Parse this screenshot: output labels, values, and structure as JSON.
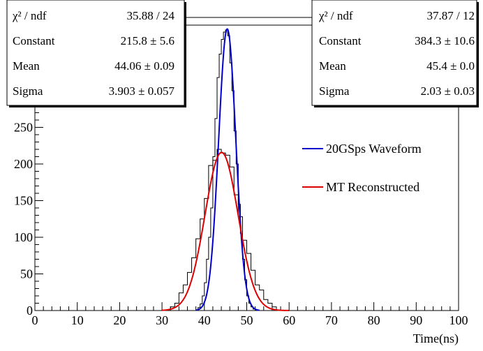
{
  "chart_data": {
    "type": "line",
    "title": "",
    "xlabel": "Time(ns)",
    "ylabel": "",
    "xlim": [
      0,
      100
    ],
    "ylim": [
      0,
      400
    ],
    "x_ticks": [
      0,
      10,
      20,
      30,
      40,
      50,
      60,
      70,
      80,
      90,
      100
    ],
    "y_ticks": [
      0,
      50,
      100,
      150,
      200,
      250
    ],
    "grid": false,
    "legend_placement": "right",
    "histograms": [
      {
        "name": "",
        "color": "#000000",
        "bin_width": 1,
        "bin_lo": [
          32,
          33,
          34,
          35,
          36,
          37,
          38,
          39,
          40,
          41,
          42,
          43,
          44,
          45,
          46,
          47,
          48,
          49,
          50,
          51,
          52,
          53,
          54,
          55,
          56
        ],
        "values": [
          5,
          10,
          24,
          35,
          52,
          72,
          98,
          125,
          153,
          198,
          205,
          220,
          215,
          212,
          196,
          158,
          128,
          96,
          78,
          55,
          35,
          28,
          15,
          10,
          5
        ]
      },
      {
        "name": "",
        "color": "#000000",
        "bin_width": 0.5,
        "bin_lo": [
          38.5,
          39,
          39.5,
          40,
          40.5,
          41,
          41.5,
          42,
          42.5,
          43,
          43.5,
          44,
          44.5,
          45,
          45.5,
          46,
          46.5,
          47,
          47.5,
          48,
          48.5,
          49,
          49.5,
          50,
          50.5,
          51,
          51.5
        ],
        "values": [
          4,
          9,
          20,
          38,
          70,
          100,
          140,
          210,
          262,
          318,
          350,
          370,
          380,
          383,
          375,
          338,
          300,
          245,
          200,
          145,
          105,
          70,
          42,
          20,
          10,
          5,
          2
        ]
      }
    ],
    "series": [
      {
        "name": "20GSps Waveform",
        "color": "#0000cc",
        "constant": 384.3,
        "mean": 45.4,
        "sigma": 2.03,
        "x_range": [
          38,
          53
        ]
      },
      {
        "name": "MT Reconstructed",
        "color": "#dd0000",
        "constant": 215.8,
        "mean": 44.06,
        "sigma": 3.903,
        "x_range": [
          30,
          60
        ]
      }
    ],
    "stat_boxes": [
      {
        "placement": "top-left",
        "rows": [
          {
            "label": "χ² / ndf",
            "value": "35.88 / 24"
          },
          {
            "label": "Constant",
            "value": "215.8 ± 5.6"
          },
          {
            "label": "Mean",
            "value": "44.06 ± 0.09"
          },
          {
            "label": "Sigma",
            "value": "3.903 ± 0.057"
          }
        ]
      },
      {
        "placement": "top-right",
        "rows": [
          {
            "label": "χ² / ndf",
            "value": "37.87 / 12"
          },
          {
            "label": "Constant",
            "value": "384.3 ± 10.6"
          },
          {
            "label": "Mean",
            "value": "45.4 ± 0.0"
          },
          {
            "label": "Sigma",
            "value": "2.03 ± 0.03"
          }
        ]
      }
    ]
  }
}
